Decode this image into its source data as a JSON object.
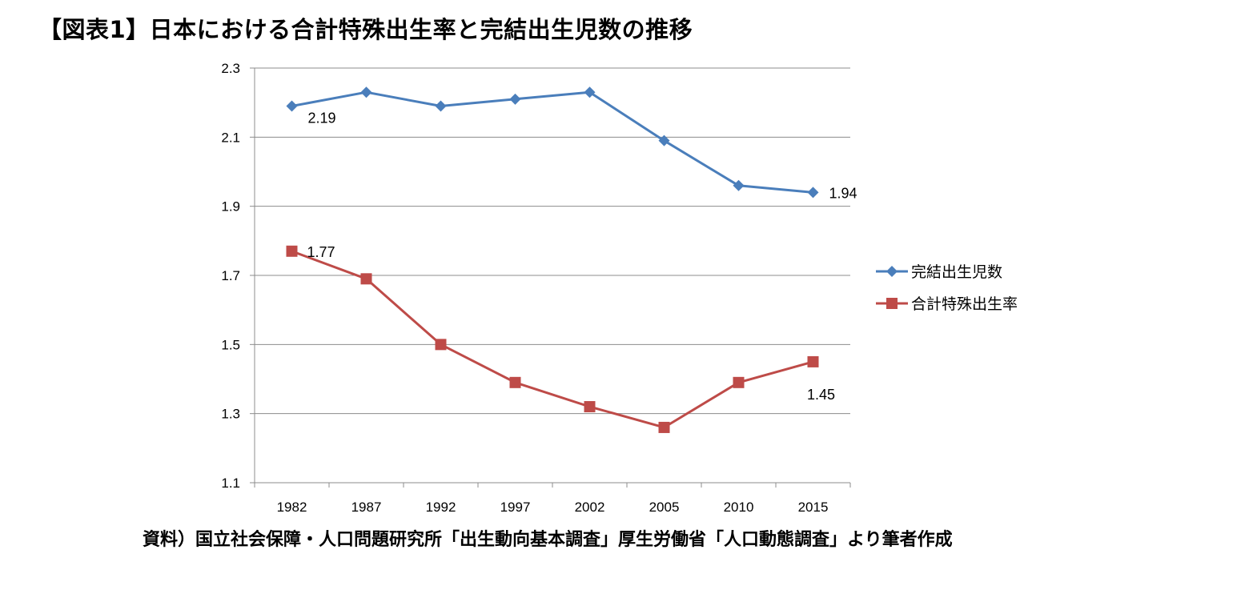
{
  "title": "【図表1】日本における合計特殊出生率と完結出生児数の推移",
  "source": "資料）国立社会保障・人口問題研究所「出生動向基本調査」厚生労働省「人口動態調査」より筆者作成",
  "chart_data": {
    "type": "line",
    "categories": [
      "1982",
      "1987",
      "1992",
      "1997",
      "2002",
      "2005",
      "2010",
      "2015"
    ],
    "ylim": [
      1.1,
      2.3
    ],
    "yticks": [
      "2.3",
      "2.1",
      "1.9",
      "1.7",
      "1.5",
      "1.3",
      "1.1"
    ],
    "grid": true,
    "legend_position": "right",
    "series": [
      {
        "name": "完結出生児数",
        "values": [
          2.19,
          2.23,
          2.19,
          2.21,
          2.23,
          2.09,
          1.96,
          1.94
        ],
        "color": "#4a7ebb",
        "marker": "diamond",
        "labels": [
          {
            "index": 0,
            "text": "2.19"
          },
          {
            "index": 7,
            "text": "1.94"
          }
        ]
      },
      {
        "name": "合計特殊出生率",
        "values": [
          1.77,
          1.69,
          1.5,
          1.39,
          1.32,
          1.26,
          1.39,
          1.45
        ],
        "color": "#be4b48",
        "marker": "square",
        "labels": [
          {
            "index": 0,
            "text": "1.77"
          },
          {
            "index": 7,
            "text": "1.45"
          }
        ]
      }
    ]
  }
}
